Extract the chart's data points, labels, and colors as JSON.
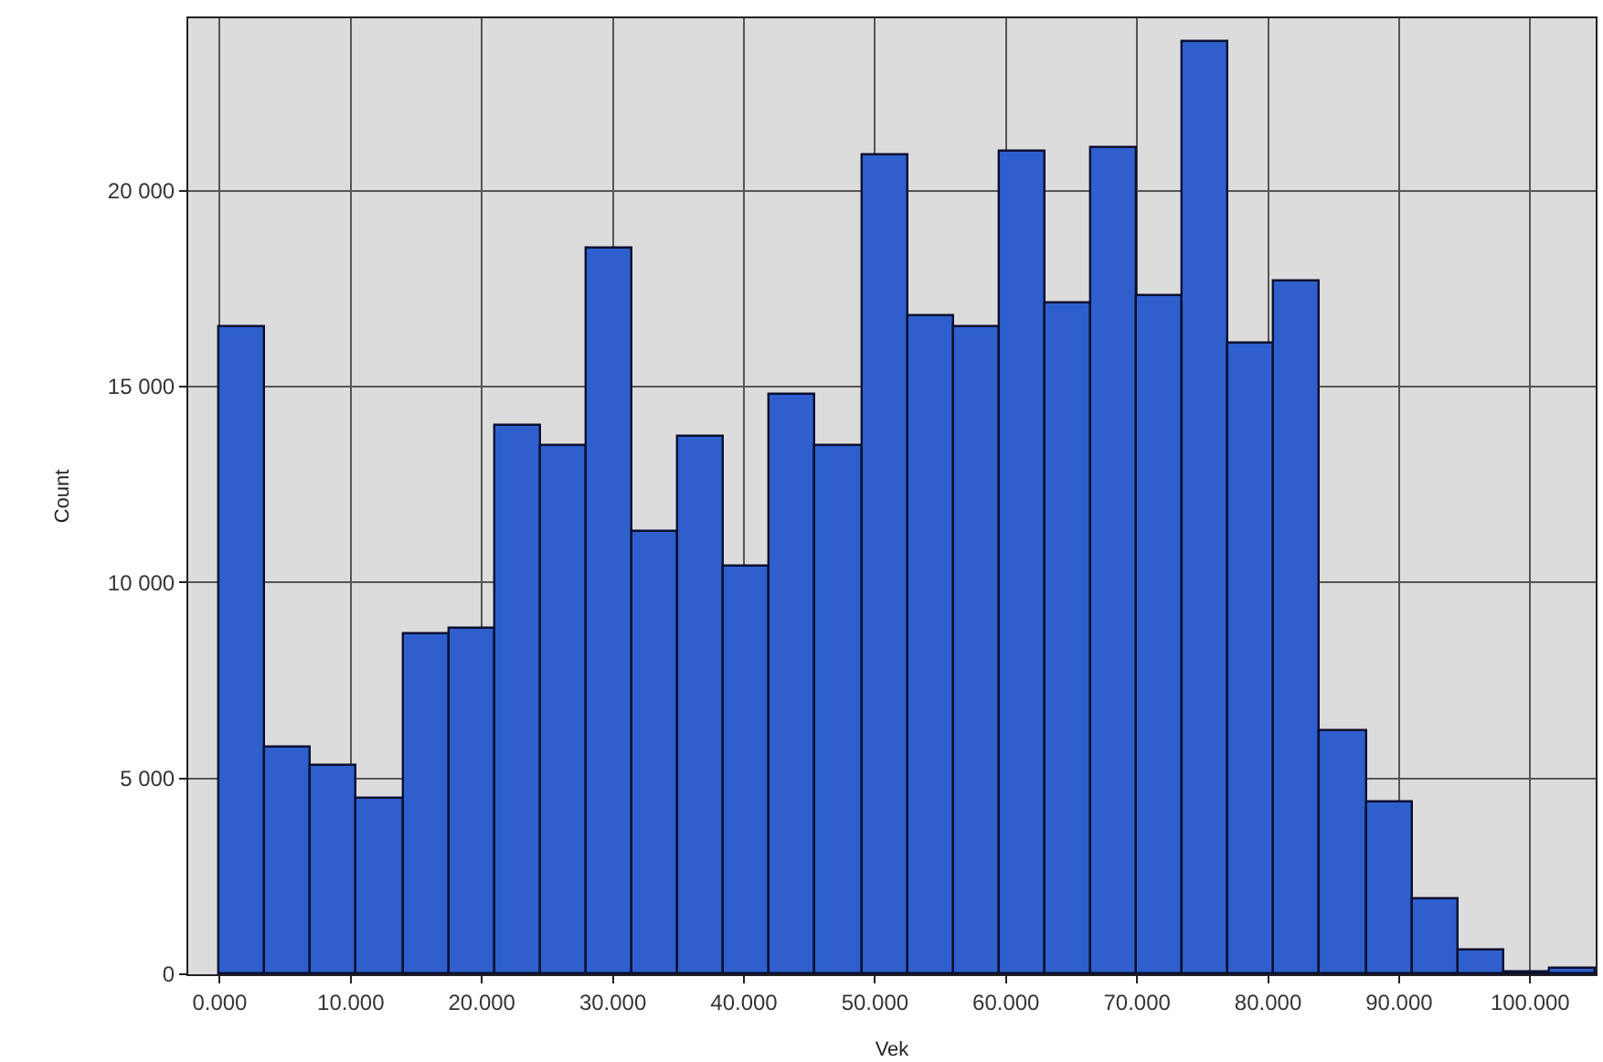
{
  "chart_data": {
    "type": "histogram",
    "xlabel": "Vek",
    "ylabel": "Count",
    "color": "#2e5fcc",
    "bins": [
      0,
      3.5,
      7,
      10.5,
      14,
      17.5,
      21,
      24.5,
      28,
      31.5,
      35,
      38.5,
      42,
      45.5,
      49,
      52.5,
      56,
      59.5,
      63,
      66.5,
      70,
      73.5,
      77,
      80.5,
      84,
      87.5,
      91,
      94.5,
      98,
      101.5,
      105
    ],
    "values": [
      16500,
      5800,
      5300,
      4500,
      8700,
      8800,
      14000,
      13500,
      18500,
      11300,
      13700,
      10400,
      14800,
      13500,
      20900,
      16800,
      16500,
      21000,
      17100,
      21100,
      17300,
      23800,
      16100,
      17700,
      6200,
      4400,
      1900,
      600,
      50,
      150
    ],
    "xlim": [
      -2.4,
      105
    ],
    "ylim": [
      0,
      24400
    ],
    "xticks": [
      {
        "value": 0,
        "label": "0.000"
      },
      {
        "value": 10,
        "label": "10.000"
      },
      {
        "value": 20,
        "label": "20.000"
      },
      {
        "value": 30,
        "label": "30.000"
      },
      {
        "value": 40,
        "label": "40.000"
      },
      {
        "value": 50,
        "label": "50.000"
      },
      {
        "value": 60,
        "label": "60.000"
      },
      {
        "value": 70,
        "label": "70.000"
      },
      {
        "value": 80,
        "label": "80.000"
      },
      {
        "value": 90,
        "label": "90.000"
      },
      {
        "value": 100,
        "label": "100.000"
      }
    ],
    "yticks": [
      0,
      {
        "value": 5000,
        "label": "5 000"
      },
      {
        "value": 10000,
        "label": "10 000"
      },
      {
        "value": 15000,
        "label": "15 000"
      },
      {
        "value": 20000,
        "label": "20 000"
      }
    ],
    "grid": true
  }
}
